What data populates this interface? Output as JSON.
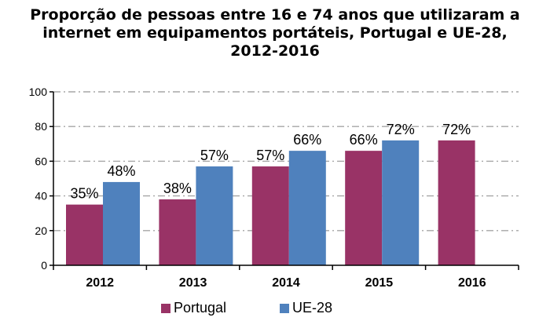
{
  "chart_data": {
    "type": "bar",
    "title_lines": [
      "Proporção de pessoas entre 16 e 74 anos que utilizaram a",
      "internet em equipamentos portáteis, Portugal e UE-28,",
      "2012-2016"
    ],
    "categories": [
      "2012",
      "2013",
      "2014",
      "2015",
      "2016"
    ],
    "series": [
      {
        "name": "Portugal",
        "color": "#993366",
        "values": [
          35,
          38,
          57,
          66,
          72
        ],
        "labels": [
          "35%",
          "38%",
          "57%",
          "66%",
          "72%"
        ]
      },
      {
        "name": "UE-28",
        "color": "#4F81BD",
        "values": [
          48,
          57,
          66,
          72,
          null
        ],
        "labels": [
          "48%",
          "57%",
          "66%",
          "72%",
          null
        ]
      }
    ],
    "ylim": [
      0,
      100
    ],
    "yticks": [
      "0",
      "20",
      "40",
      "60",
      "80",
      "100"
    ],
    "ytick_values": [
      0,
      20,
      40,
      60,
      80,
      100
    ],
    "grid": "dash-dot horizontal",
    "legend_position": "bottom"
  }
}
